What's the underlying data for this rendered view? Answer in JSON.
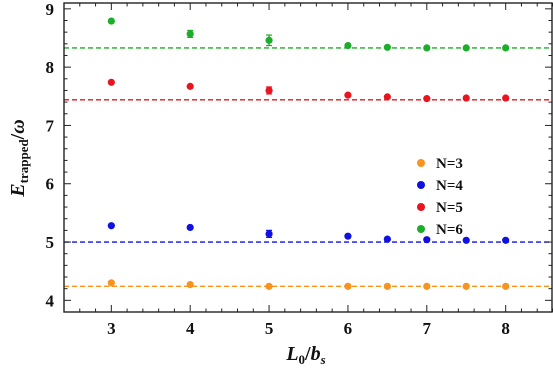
{
  "chart_data": {
    "type": "scatter",
    "xlabel": {
      "main": "L",
      "sub1": "0",
      "slash": "/",
      "main2": "b",
      "sub2": "s"
    },
    "ylabel": {
      "main": "E",
      "sub": "trapped",
      "slash": "/",
      "main2": "ω"
    },
    "xlim": [
      2.4,
      8.6
    ],
    "ylim": [
      3.8,
      9.1
    ],
    "xticks": [
      3,
      4,
      5,
      6,
      7,
      8
    ],
    "yticks": [
      4,
      5,
      6,
      7,
      8,
      9
    ],
    "legend_position": "right-middle",
    "series": [
      {
        "name": "N=3",
        "color": "#f7941d",
        "reference": 4.24,
        "x": [
          3,
          4,
          5,
          6,
          6.5,
          7,
          7.5,
          8
        ],
        "y": [
          4.3,
          4.27,
          4.24,
          4.24,
          4.24,
          4.24,
          4.24,
          4.24
        ],
        "err": [
          0.03,
          0.03,
          0.02,
          0.01,
          0.01,
          0.01,
          0.01,
          0.01
        ]
      },
      {
        "name": "N=4",
        "color": "#1010e0",
        "reference": 5.0,
        "x": [
          3,
          4,
          5,
          6,
          6.5,
          7,
          7.5,
          8
        ],
        "y": [
          5.28,
          5.25,
          5.14,
          5.1,
          5.05,
          5.04,
          5.03,
          5.03
        ],
        "err": [
          0.03,
          0.04,
          0.06,
          0.02,
          0.02,
          0.01,
          0.01,
          0.01
        ]
      },
      {
        "name": "N=5",
        "color": "#e8141e",
        "reference": 7.44,
        "x": [
          3,
          4,
          5,
          6,
          6.5,
          7,
          7.5,
          8
        ],
        "y": [
          7.74,
          7.67,
          7.6,
          7.52,
          7.49,
          7.46,
          7.47,
          7.47
        ],
        "err": [
          0.03,
          0.04,
          0.06,
          0.02,
          0.02,
          0.01,
          0.01,
          0.01
        ]
      },
      {
        "name": "N=6",
        "color": "#1cae2a",
        "reference": 8.33,
        "x": [
          3,
          4,
          5,
          6,
          6.5,
          7,
          7.5,
          8
        ],
        "y": [
          8.79,
          8.57,
          8.46,
          8.37,
          8.34,
          8.33,
          8.33,
          8.33
        ],
        "err": [
          0.04,
          0.06,
          0.09,
          0.02,
          0.02,
          0.01,
          0.01,
          0.01
        ]
      }
    ]
  }
}
